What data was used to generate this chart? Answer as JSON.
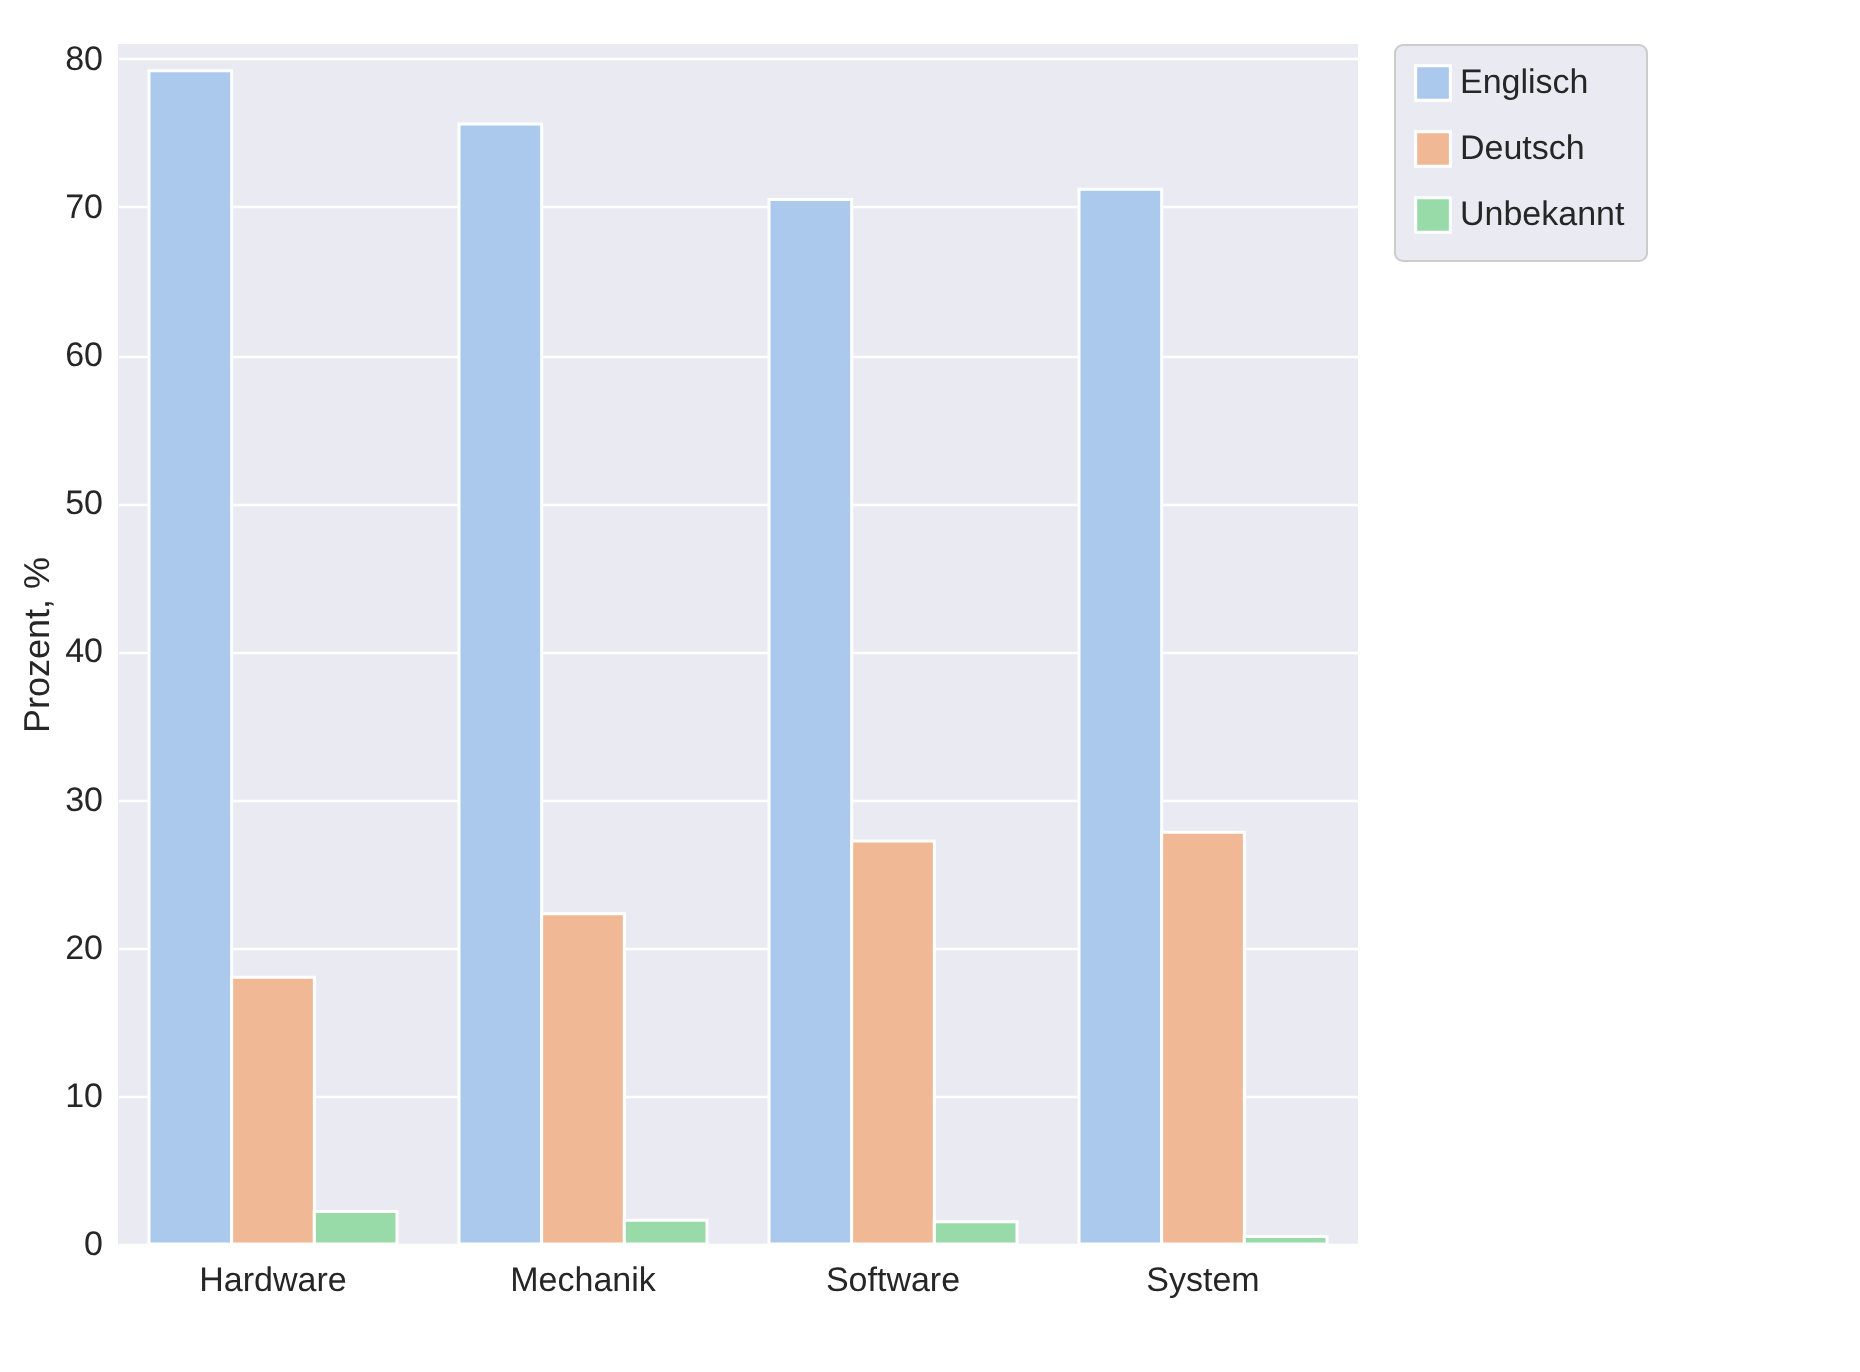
{
  "chart_data": {
    "type": "bar",
    "ylabel": "Prozent, %",
    "categories": [
      "Hardware",
      "Mechanik",
      "Software",
      "System"
    ],
    "series": [
      {
        "name": "Englisch",
        "color": "#abc9ec",
        "values": [
          79.2,
          75.6,
          70.5,
          71.2
        ]
      },
      {
        "name": "Deutsch",
        "color": "#f0b894",
        "values": [
          18.0,
          22.3,
          27.2,
          27.8
        ]
      },
      {
        "name": "Unbekannt",
        "color": "#99dba8",
        "values": [
          2.2,
          1.6,
          1.5,
          0.5
        ]
      }
    ],
    "ylim": [
      0,
      81
    ],
    "yticks": [
      0,
      10,
      20,
      30,
      40,
      50,
      60,
      70,
      80
    ],
    "grid": "y",
    "legend": "top right"
  }
}
